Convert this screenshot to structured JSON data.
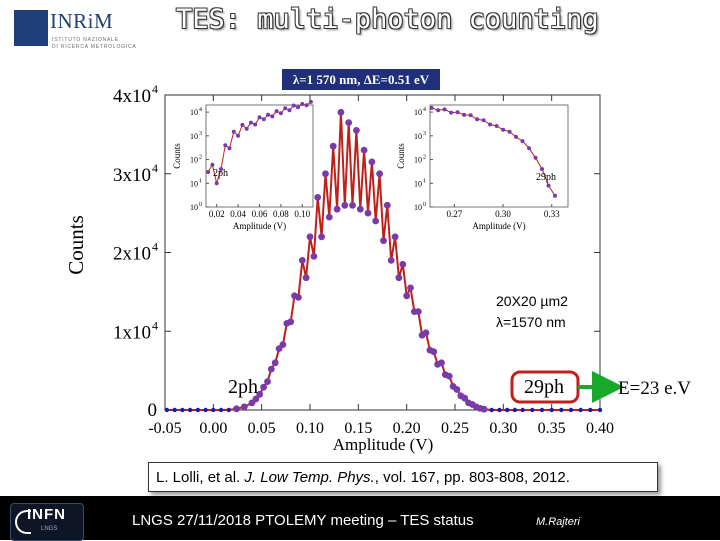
{
  "header": {
    "logo_name": "INRiM",
    "logo_sub1": "ISTITUTO NAZIONALE",
    "logo_sub2": "DI RICERCA METROLOGICA",
    "title": "TES: multi-photon counting"
  },
  "chart_data": {
    "type": "scatter",
    "title": "λ=1 570 nm, ΔE=0.51 eV",
    "xlabel": "Amplitude (V)",
    "ylabel": "Counts",
    "xlim": [
      -0.05,
      0.4
    ],
    "ylim": [
      0,
      40000
    ],
    "xticks": [
      "-0.05",
      "0.00",
      "0.05",
      "0.10",
      "0.15",
      "0.20",
      "0.25",
      "0.30",
      "0.35",
      "0.40"
    ],
    "yticks": [
      "0",
      "1x10",
      "2x10",
      "3x10",
      "4x10"
    ],
    "ytick_exp": "4",
    "series": [
      {
        "color": "#1a1aa8",
        "x": [
          -0.048,
          -0.04,
          -0.032,
          -0.024,
          -0.016,
          -0.008,
          0.0,
          0.008,
          0.016,
          0.024,
          0.032,
          0.04,
          0.044,
          0.048,
          0.052,
          0.056,
          0.06,
          0.064,
          0.068,
          0.072,
          0.076,
          0.08,
          0.084,
          0.088,
          0.092,
          0.096,
          0.1,
          0.104,
          0.108,
          0.112,
          0.116,
          0.12,
          0.124,
          0.128,
          0.132,
          0.136,
          0.14,
          0.144,
          0.148,
          0.152,
          0.156,
          0.16,
          0.164,
          0.168,
          0.172,
          0.176,
          0.18,
          0.184,
          0.188,
          0.192,
          0.196,
          0.2,
          0.204,
          0.208,
          0.212,
          0.216,
          0.22,
          0.224,
          0.228,
          0.232,
          0.236,
          0.24,
          0.244,
          0.248,
          0.252,
          0.256,
          0.26,
          0.264,
          0.268,
          0.272,
          0.276,
          0.28,
          0.288,
          0.296,
          0.304,
          0.312,
          0.32,
          0.33,
          0.34,
          0.35,
          0.36,
          0.37,
          0.38,
          0.39,
          0.4
        ],
        "y": [
          0,
          0,
          0,
          0,
          0,
          0,
          0,
          0,
          0,
          150,
          400,
          900,
          1400,
          2000,
          2900,
          3600,
          5200,
          6000,
          7800,
          8300,
          11000,
          11200,
          14500,
          14300,
          19000,
          16800,
          22000,
          19500,
          27000,
          22000,
          30000,
          24500,
          33500,
          25500,
          37800,
          26000,
          36500,
          26000,
          35500,
          25500,
          33000,
          25000,
          31500,
          24000,
          30000,
          21500,
          26000,
          19000,
          22000,
          16800,
          18500,
          14500,
          15500,
          12500,
          12500,
          9500,
          9800,
          7600,
          7400,
          5800,
          6000,
          4500,
          4300,
          3000,
          2600,
          1800,
          1500,
          900,
          700,
          400,
          200,
          100,
          0,
          0,
          0,
          0,
          0,
          0,
          0,
          0,
          0,
          0,
          0,
          0,
          0
        ]
      }
    ],
    "annotations": [
      {
        "text": "2ph",
        "x": 0.04,
        "y": 3000
      },
      {
        "text": "29ph",
        "x": 0.336,
        "y": 3000
      },
      {
        "text": "E=23 e.V",
        "x": 0.47,
        "y": 3000
      },
      {
        "text": "20X20 µm2",
        "x": 0.29,
        "y": 14500
      },
      {
        "text": "λ=1570 nm",
        "x": 0.29,
        "y": 11800
      }
    ],
    "insets": [
      {
        "type": "scatter",
        "log_y": true,
        "xlabel": "Amplitude (V)",
        "ylabel": "Counts",
        "xticks": [
          "0.02",
          "0.04",
          "0.06",
          "0.08",
          "0.10"
        ],
        "xlim": [
          0.01,
          0.11
        ],
        "yticks_base": "10",
        "yticks_exp": [
          "0",
          "1",
          "2",
          "3",
          "4"
        ],
        "ylim_exp": [
          0,
          4.3
        ],
        "label": "2ph",
        "x": [
          0.012,
          0.016,
          0.02,
          0.024,
          0.028,
          0.032,
          0.036,
          0.04,
          0.044,
          0.048,
          0.052,
          0.056,
          0.06,
          0.064,
          0.068,
          0.072,
          0.076,
          0.08,
          0.084,
          0.088,
          0.092,
          0.096,
          0.1,
          0.104,
          0.108
        ],
        "y": [
          30,
          60,
          10,
          40,
          400,
          300,
          1500,
          1000,
          2900,
          2000,
          3600,
          3000,
          6000,
          5000,
          7800,
          6600,
          11000,
          9000,
          14500,
          12000,
          19000,
          16000,
          22000,
          19500,
          27000
        ]
      },
      {
        "type": "scatter",
        "log_y": true,
        "xlabel": "Amplitude (V)",
        "ylabel": "Counts",
        "xticks": [
          "0.27",
          "0.30",
          "0.33"
        ],
        "xlim": [
          0.255,
          0.34
        ],
        "yticks_base": "10",
        "yticks_exp": [
          "0",
          "1",
          "2",
          "3",
          "4"
        ],
        "ylim_exp": [
          0,
          4.3
        ],
        "label": "29ph",
        "x": [
          0.256,
          0.26,
          0.264,
          0.268,
          0.272,
          0.276,
          0.28,
          0.284,
          0.288,
          0.292,
          0.296,
          0.3,
          0.304,
          0.308,
          0.312,
          0.316,
          0.32,
          0.324,
          0.328,
          0.332
        ],
        "y": [
          15000,
          12000,
          13000,
          9500,
          9800,
          7600,
          7400,
          5000,
          4500,
          3000,
          2600,
          1800,
          1500,
          900,
          600,
          300,
          120,
          40,
          8,
          3
        ]
      }
    ]
  },
  "citation": {
    "pre": "L. Lolli, et al. ",
    "journal": "J. Low Temp. Phys.",
    "post": ", vol. 167, pp. 803-808, 2012."
  },
  "footer": {
    "logo": "INFN",
    "logo_sub": "LNGS",
    "text": "LNGS 27/11/2018 PTOLEMY meeting – TES status",
    "author": "M.Rajteri"
  },
  "colors": {
    "data_line": "#c0201a",
    "data_point": "#7a3aa8",
    "flat_baseline": "#1a1aa8",
    "title_box": "#1f2f7a",
    "highlight": "#c0201a",
    "arrow": "#1aa82a"
  }
}
